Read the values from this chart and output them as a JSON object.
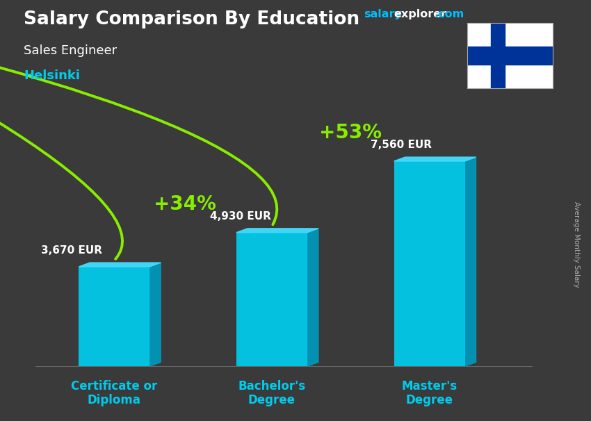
{
  "title_line1": "Salary Comparison By Education",
  "subtitle1": "Sales Engineer",
  "subtitle2": "Helsinki",
  "categories": [
    "Certificate or\nDiploma",
    "Bachelor's\nDegree",
    "Master's\nDegree"
  ],
  "values": [
    3670,
    4930,
    7560
  ],
  "value_labels": [
    "3,670 EUR",
    "4,930 EUR",
    "7,560 EUR"
  ],
  "pct_labels": [
    "+34%",
    "+53%"
  ],
  "bar_face_color": "#00CCEE",
  "bar_side_color": "#0099BB",
  "bar_top_color": "#44DDFF",
  "bg_color": "#3a3a3a",
  "ylabel_text": "Average Monthly Salary",
  "site_salary_color": "#00BFFF",
  "site_explorer_color": "#ffffff",
  "arrow_color": "#88EE00",
  "title_color": "#ffffff",
  "subtitle1_color": "#ffffff",
  "subtitle2_color": "#00CCEE",
  "value_label_color": "#ffffff",
  "pct_label_color": "#88EE00",
  "xlabel_color": "#00CCEE",
  "flag_blue": "#003399",
  "flag_white": "#ffffff",
  "ylim": [
    0,
    9000
  ],
  "x_positions": [
    1,
    2,
    3
  ],
  "bar_width": 0.45
}
